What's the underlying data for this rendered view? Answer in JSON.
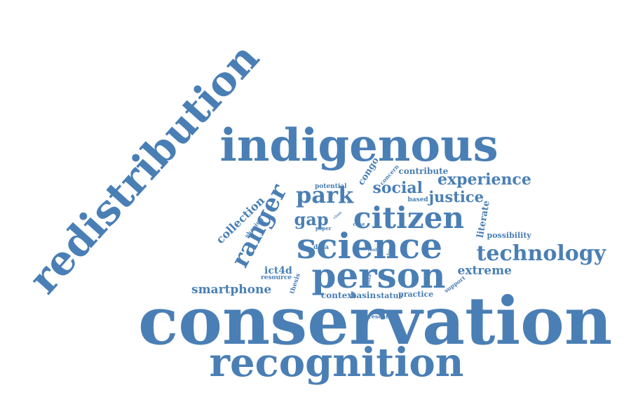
{
  "color": "#4a7fb5",
  "background": "#ffffff",
  "words": [
    {
      "text": "conservation",
      "rotated": false
    },
    {
      "text": "redistribution",
      "rotated": true
    },
    {
      "text": "indigenous",
      "rotated": false
    },
    {
      "text": "recognition",
      "rotated": false
    },
    {
      "text": "science",
      "rotated": false
    },
    {
      "text": "person",
      "rotated": false
    },
    {
      "text": "citizen",
      "rotated": false
    },
    {
      "text": "technology",
      "rotated": false
    },
    {
      "text": "ranger",
      "rotated": true
    },
    {
      "text": "park",
      "rotated": false
    },
    {
      "text": "experience",
      "rotated": false
    },
    {
      "text": "social",
      "rotated": false
    },
    {
      "text": "justice",
      "rotated": false
    },
    {
      "text": "smartphone",
      "rotated": false
    },
    {
      "text": "collection",
      "rotated": true
    },
    {
      "text": "extreme",
      "rotated": false
    },
    {
      "text": "gap",
      "rotated": false
    },
    {
      "text": "literate",
      "rotated": true
    },
    {
      "text": "ict4d",
      "rotated": false
    },
    {
      "text": "congo",
      "rotated": true
    },
    {
      "text": "contribute",
      "rotated": false
    },
    {
      "text": "context",
      "rotated": false
    },
    {
      "text": "basin",
      "rotated": false
    },
    {
      "text": "status",
      "rotated": false
    },
    {
      "text": "practice",
      "rotated": false
    },
    {
      "text": "possibility",
      "rotated": false
    },
    {
      "text": "potential",
      "rotated": false
    },
    {
      "text": "based",
      "rotated": false
    },
    {
      "text": "data",
      "rotated": false
    },
    {
      "text": "resource",
      "rotated": false
    },
    {
      "text": "thesis",
      "rotated": true
    },
    {
      "text": "support",
      "rotated": true
    },
    {
      "text": "concern",
      "rotated": true
    },
    {
      "text": "shaping",
      "rotated": true
    },
    {
      "text": "present",
      "rotated": false
    },
    {
      "text": "case",
      "rotated": false
    },
    {
      "text": "paper",
      "rotated": false
    },
    {
      "text": "role",
      "rotated": false
    },
    {
      "text": "tool",
      "rotated": false
    },
    {
      "text": "forest",
      "rotated": true
    },
    {
      "text": "baka",
      "rotated": true
    },
    {
      "text": "class",
      "rotated": true
    }
  ]
}
